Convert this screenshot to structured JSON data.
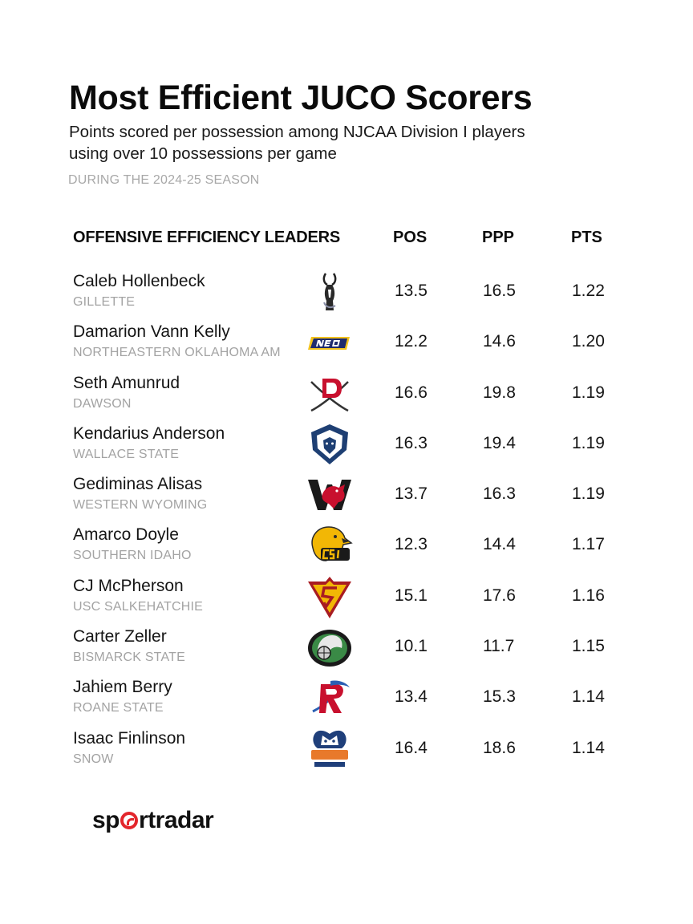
{
  "title": "Most Efficient JUCO Scorers",
  "subtitle_line1": "Points scored per possession among NJCAA Division I players",
  "subtitle_line2": "using over 10 possessions per game",
  "season_note": "DURING THE 2024-25 SEASON",
  "table": {
    "header_label": "OFFENSIVE EFFICIENCY LEADERS",
    "columns": [
      "POS",
      "PPP",
      "PTS"
    ],
    "rows": [
      {
        "name": "Caleb Hollenbeck",
        "team": "GILLETTE",
        "logo_icon": "gillette-pronghorn-logo",
        "values": [
          "13.5",
          "16.5",
          "1.22"
        ]
      },
      {
        "name": "Damarion Vann Kelly",
        "team": "NORTHEASTERN OKLAHOMA AM",
        "logo_icon": "neo-logo",
        "values": [
          "12.2",
          "14.6",
          "1.20"
        ]
      },
      {
        "name": "Seth Amunrud",
        "team": "DAWSON",
        "logo_icon": "dawson-buccaneer-logo",
        "values": [
          "16.6",
          "19.8",
          "1.19"
        ]
      },
      {
        "name": "Kendarius Anderson",
        "team": "WALLACE STATE",
        "logo_icon": "wallace-lion-logo",
        "values": [
          "16.3",
          "19.4",
          "1.19"
        ]
      },
      {
        "name": "Gediminas Alisas",
        "team": "WESTERN WYOMING",
        "logo_icon": "western-wyoming-mustang-logo",
        "values": [
          "13.7",
          "16.3",
          "1.19"
        ]
      },
      {
        "name": "Amarco Doyle",
        "team": "SOUTHERN IDAHO",
        "logo_icon": "csi-eagle-logo",
        "values": [
          "12.3",
          "14.4",
          "1.17"
        ]
      },
      {
        "name": "CJ McPherson",
        "team": "USC SALKEHATCHIE",
        "logo_icon": "salkehatchie-shield-logo",
        "values": [
          "15.1",
          "17.6",
          "1.16"
        ]
      },
      {
        "name": "Carter Zeller",
        "team": "BISMARCK STATE",
        "logo_icon": "bismarck-mystic-logo",
        "values": [
          "10.1",
          "11.7",
          "1.15"
        ]
      },
      {
        "name": "Jahiem Berry",
        "team": "ROANE STATE",
        "logo_icon": "roane-raider-logo",
        "values": [
          "13.4",
          "15.3",
          "1.14"
        ]
      },
      {
        "name": "Isaac Finlinson",
        "team": "SNOW",
        "logo_icon": "snow-badger-logo",
        "values": [
          "16.4",
          "18.6",
          "1.14"
        ]
      }
    ]
  },
  "brand": {
    "prefix": "sp",
    "suffix": "rtradar",
    "icon": "sportradar-o-icon",
    "accent": "#e3262c"
  }
}
